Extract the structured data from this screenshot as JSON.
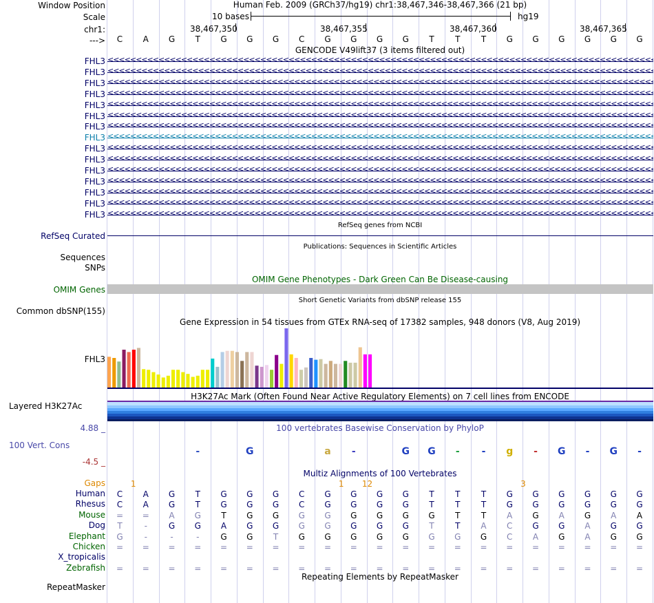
{
  "header": {
    "window_position_label": "Window Position",
    "title": "Human Feb. 2009 (GRCh37/hg19)   chr1:38,467,346-38,467,366 (21 bp)",
    "scale_label": "Scale",
    "scale_text": "10 bases",
    "scale_assembly": "hg19",
    "chrom_label": "chr1:",
    "strand_label": "--->",
    "coordinates": [
      "38,467,350",
      "38,467,355",
      "38,467,360",
      "38,467,365"
    ]
  },
  "sequence": [
    "C",
    "A",
    "G",
    "T",
    "G",
    "G",
    "G",
    "C",
    "G",
    "G",
    "G",
    "G",
    "T",
    "T",
    "T",
    "G",
    "G",
    "G",
    "G",
    "G",
    "G"
  ],
  "gencode": {
    "title": "GENCODE V49lift37 (3 items filtered out)",
    "rows": [
      "FHL3",
      "FHL3",
      "FHL3",
      "FHL3",
      "FHL3",
      "FHL3",
      "FHL3",
      "FHL3",
      "FHL3",
      "FHL3",
      "FHL3",
      "FHL3",
      "FHL3",
      "FHL3",
      "FHL3"
    ],
    "highlight_index": 7,
    "color": "#000066",
    "highlight_color": "#0c7fab"
  },
  "refseq": {
    "title": "RefSeq genes from NCBI",
    "label": "RefSeq Curated"
  },
  "publications": {
    "title": "Publications: Sequences in Scientific Articles",
    "labels": [
      "Sequences",
      "SNPs"
    ]
  },
  "omim": {
    "title": "OMIM Gene Phenotypes - Dark Green Can Be Disease-causing",
    "label": "OMIM Genes",
    "color": "#006400"
  },
  "dbsnp": {
    "title": "Short Genetic Variants from dbSNP release 155",
    "label": "Common dbSNP(155)"
  },
  "gtex": {
    "title": "Gene Expression in 54 tissues from GTEx RNA-seq of 17382 samples, 948 donors (V8, Aug 2019)",
    "label": "FHL3",
    "values": [
      0.52,
      0.5,
      0.44,
      0.64,
      0.6,
      0.64,
      0.67,
      0.31,
      0.3,
      0.26,
      0.22,
      0.17,
      0.2,
      0.3,
      0.3,
      0.26,
      0.23,
      0.18,
      0.2,
      0.3,
      0.3,
      0.49,
      0.35,
      0.6,
      0.62,
      0.62,
      0.6,
      0.45,
      0.6,
      0.6,
      0.37,
      0.35,
      0.38,
      0.3,
      0.55,
      0.4,
      1.0,
      0.56,
      0.5,
      0.3,
      0.34,
      0.5,
      0.47,
      0.48,
      0.4,
      0.45,
      0.4,
      0.4,
      0.45,
      0.42,
      0.42,
      0.68,
      0.56,
      0.56
    ],
    "colors": [
      "#FFA54F",
      "#EE9A00",
      "#8FBC8F",
      "#8B1C62",
      "#EE6A50",
      "#FF0000",
      "#CDB79E",
      "#EEEE00",
      "#EEEE00",
      "#EEEE00",
      "#EEEE00",
      "#EEEE00",
      "#EEEE00",
      "#EEEE00",
      "#EEEE00",
      "#EEEE00",
      "#EEEE00",
      "#EEEE00",
      "#EEEE00",
      "#EEEE00",
      "#EEEE00",
      "#00CDCD",
      "#9AC0CD",
      "#B4CDE6",
      "#EED5D2",
      "#EECFA1",
      "#CDB79E",
      "#8B7355",
      "#CDB79E",
      "#EED5D2",
      "#7A378B",
      "#CD96CD",
      "#EED2EE",
      "#9ACD32",
      "#8B008B",
      "#EEEE00",
      "#7A67EE",
      "#FFD700",
      "#FFB6C1",
      "#CDCDAA",
      "#CDC5BF",
      "#3A5FCD",
      "#1E90FF",
      "#CDC9A5",
      "#CDB79E",
      "#CDAA7D",
      "#CDB79E",
      "#EED5D2",
      "#228B22",
      "#CDC9A5",
      "#CDC9A5",
      "#EEC591",
      "#FF00FF",
      "#FF00FF"
    ]
  },
  "h3k27ac": {
    "title": "H3K27Ac Mark (Often Found Near Active Regulatory Elements) on 7 cell lines from ENCODE",
    "label": "Layered H3K27Ac",
    "colors": [
      "#6a2ba5",
      "#bde0ff",
      "#8ec7ff",
      "#5aa8ff",
      "#2f7fe0",
      "#1b57c0",
      "#0e3390",
      "#0a1e60"
    ]
  },
  "phylop": {
    "title": "100 vertebrates Basewise Conservation by PhyloP",
    "label": "100 Vert. Cons",
    "max": "4.88 _",
    "min": "-4.5 _"
  },
  "multiz": {
    "title": "Multiz Alignments of 100 Vertebrates",
    "gaps_label": "Gaps",
    "gap_marks": [
      {
        "pos": 1.5,
        "text": "1"
      },
      {
        "pos": 9.5,
        "text": "1"
      },
      {
        "pos": 10.5,
        "text": "12"
      },
      {
        "pos": 16.5,
        "text": "3"
      }
    ],
    "species": [
      {
        "name": "Human",
        "color": "#000066",
        "seq": [
          "C",
          "A",
          "G",
          "T",
          "G",
          "G",
          "G",
          "C",
          "G",
          "G",
          "G",
          "G",
          "T",
          "T",
          "T",
          "G",
          "G",
          "G",
          "G",
          "G",
          "G"
        ],
        "light": []
      },
      {
        "name": "Rhesus",
        "color": "#000066",
        "seq": [
          "C",
          "A",
          "G",
          "T",
          "G",
          "G",
          "G",
          "C",
          "G",
          "G",
          "G",
          "G",
          "T",
          "T",
          "T",
          "G",
          "G",
          "G",
          "G",
          "G",
          "G"
        ],
        "light": []
      },
      {
        "name": "Mouse",
        "color": "#006400",
        "seq": [
          "=",
          "=",
          "A",
          "G",
          "T",
          "G",
          "G",
          "G",
          "G",
          "G",
          "G",
          "G",
          "G",
          "T",
          "T",
          "A",
          "G",
          "A",
          "G",
          "A",
          "A"
        ],
        "light": [
          0,
          1,
          2,
          3,
          7,
          8,
          15,
          17,
          19
        ]
      },
      {
        "name": "Dog",
        "color": "#000066",
        "seq": [
          "T",
          "-",
          "G",
          "G",
          "A",
          "G",
          "G",
          "G",
          "G",
          "G",
          "G",
          "G",
          "T",
          "T",
          "A",
          "C",
          "G",
          "G",
          "A",
          "G",
          "G"
        ],
        "light": [
          0,
          1,
          7,
          8,
          12,
          14,
          15,
          18
        ]
      },
      {
        "name": "Elephant",
        "color": "#006400",
        "seq": [
          "G",
          "-",
          "-",
          "-",
          "G",
          "G",
          "T",
          "G",
          "G",
          "G",
          "G",
          "G",
          "G",
          "G",
          "G",
          "C",
          "A",
          "G",
          "A",
          "G",
          "G"
        ],
        "light": [
          0,
          1,
          2,
          3,
          6,
          12,
          13,
          15,
          16,
          18
        ]
      },
      {
        "name": "Chicken",
        "color": "#006400",
        "seq": [
          "=",
          "=",
          "=",
          "=",
          "=",
          "=",
          "=",
          "=",
          "=",
          "=",
          "=",
          "=",
          "=",
          "=",
          "=",
          "=",
          "=",
          "=",
          "=",
          "=",
          "="
        ],
        "light": []
      },
      {
        "name": "X_tropicalis",
        "color": "#000066",
        "seq": [],
        "light": []
      },
      {
        "name": "Zebrafish",
        "color": "#006400",
        "seq": [
          "=",
          "=",
          "=",
          "=",
          "=",
          "=",
          "=",
          "=",
          "=",
          "=",
          "=",
          "=",
          "=",
          "=",
          "=",
          "=",
          "=",
          "=",
          "=",
          "=",
          "="
        ],
        "light": []
      }
    ]
  },
  "repeatmasker": {
    "title": "Repeating Elements by RepeatMasker",
    "label": "RepeatMasker"
  }
}
